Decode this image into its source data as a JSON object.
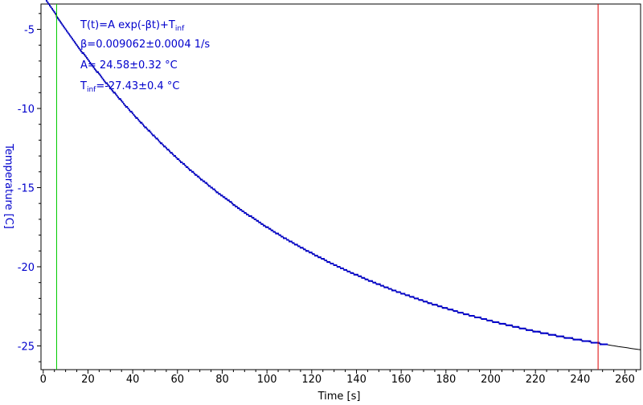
{
  "chart_data": {
    "type": "scatter",
    "xlabel": "Time [s]",
    "ylabel": "Temperature [C]",
    "xlim": [
      -1,
      267
    ],
    "ylim": [
      -26.5,
      -3.4
    ],
    "x_ticks": [
      0,
      20,
      40,
      60,
      80,
      100,
      120,
      140,
      160,
      180,
      200,
      220,
      240,
      260
    ],
    "y_ticks": [
      -5,
      -10,
      -15,
      -20,
      -25
    ],
    "x_tick_labels": [
      "0",
      "20",
      "40",
      "60",
      "80",
      "100",
      "120",
      "140",
      "160",
      "180",
      "200",
      "220",
      "240",
      "260"
    ],
    "y_tick_labels": [
      "-5",
      "-10",
      "-15",
      "-20",
      "-25"
    ],
    "fit": {
      "A": 24.58,
      "beta": 0.009062,
      "T_inf": -27.43
    },
    "fit_range": [
      6,
      248
    ],
    "measured_range": [
      0,
      252
    ],
    "fit_curve_range": [
      0,
      267
    ],
    "sample_step_s": 0.5,
    "annotations": {
      "formula": {
        "main": "T(t)=A exp(-βt)+T",
        "sub": "inf"
      },
      "beta": "β=0.009062±0.0004 1/s",
      "amplitude": "A= 24.58±0.32 °C",
      "tinf": {
        "prefix": "T",
        "sub": "inf",
        "suffix": "=-27.43±0.4 °C"
      }
    },
    "colors": {
      "data": "#0000cc",
      "fit_line": "#000000",
      "start_marker": "#00cc00",
      "end_marker": "#dd0000",
      "axis_text": "#0000cc",
      "x_text": "#000000"
    }
  }
}
